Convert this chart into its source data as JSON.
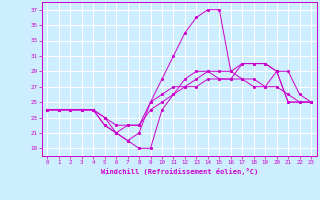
{
  "xlabel": "Windchill (Refroidissement éolien,°C)",
  "background_color": "#cceeff",
  "grid_color": "#ffffff",
  "line_color": "#cc00cc",
  "xlim": [
    -0.5,
    23.5
  ],
  "ylim": [
    18,
    38
  ],
  "yticks": [
    19,
    21,
    23,
    25,
    27,
    29,
    31,
    33,
    35,
    37
  ],
  "xticks": [
    0,
    1,
    2,
    3,
    4,
    5,
    6,
    7,
    8,
    9,
    10,
    11,
    12,
    13,
    14,
    15,
    16,
    17,
    18,
    19,
    20,
    21,
    22,
    23
  ],
  "lines": [
    {
      "x": [
        0,
        1,
        2,
        3,
        4,
        5,
        6,
        7,
        8,
        9,
        10,
        11,
        12,
        13,
        14,
        15,
        16,
        17,
        18,
        19,
        20,
        21,
        22,
        23
      ],
      "y": [
        24,
        24,
        24,
        24,
        24,
        22,
        21,
        22,
        22,
        25,
        28,
        31,
        34,
        36,
        37,
        37,
        29,
        28,
        27,
        27,
        29,
        29,
        26,
        25
      ]
    },
    {
      "x": [
        0,
        1,
        2,
        3,
        4,
        5,
        6,
        7,
        8,
        9,
        10,
        11,
        12,
        13,
        14,
        15,
        16,
        17,
        18,
        19,
        20,
        21,
        22,
        23
      ],
      "y": [
        24,
        24,
        24,
        24,
        24,
        22,
        21,
        20,
        19,
        19,
        24,
        26,
        28,
        29,
        29,
        29,
        29,
        30,
        30,
        30,
        29,
        25,
        25,
        25
      ]
    },
    {
      "x": [
        0,
        1,
        2,
        3,
        4,
        5,
        6,
        7,
        8,
        9,
        10,
        11,
        12,
        13,
        14,
        15,
        16,
        17,
        18,
        19,
        20,
        21,
        22,
        23
      ],
      "y": [
        24,
        24,
        24,
        24,
        24,
        23,
        21,
        20,
        21,
        25,
        26,
        27,
        27,
        28,
        29,
        28,
        28,
        30,
        30,
        30,
        29,
        25,
        25,
        25
      ]
    },
    {
      "x": [
        0,
        1,
        2,
        3,
        4,
        5,
        6,
        7,
        8,
        9,
        10,
        11,
        12,
        13,
        14,
        15,
        16,
        17,
        18,
        19,
        20,
        21,
        22,
        23
      ],
      "y": [
        24,
        24,
        24,
        24,
        24,
        23,
        22,
        22,
        22,
        24,
        25,
        26,
        27,
        27,
        28,
        28,
        28,
        28,
        28,
        27,
        27,
        26,
        25,
        25
      ]
    }
  ]
}
